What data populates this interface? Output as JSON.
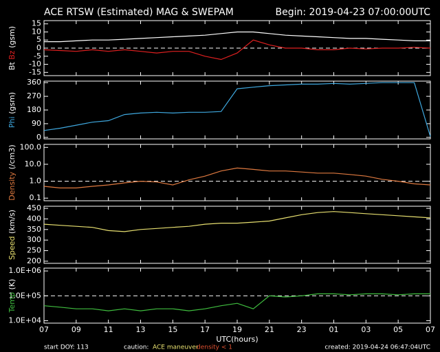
{
  "title": "ACE RTSW (Estimated) MAG & SWEPAM",
  "begin": "Begin: 2019-04-23 07:00:00UTC",
  "x_label": "UTC(hours)",
  "footer": {
    "start": "start DOY: 113",
    "caution": "caution:",
    "maneuver": "ACE maneuver",
    "density": "density < 1",
    "created": "created: 2019-04-24 06:47:04UTC"
  },
  "chart_data": [
    {
      "type": "line",
      "ylabel": "(gsm)",
      "ylim": [
        -17,
        17
      ],
      "yticks": [
        15,
        10,
        5,
        0,
        -5,
        -10,
        -15
      ],
      "hline": 0,
      "xlim": [
        0,
        24
      ],
      "x": [
        0,
        1,
        2,
        3,
        4,
        5,
        6,
        7,
        8,
        9,
        10,
        11,
        12,
        13,
        14,
        15,
        16,
        17,
        18,
        19,
        20,
        21,
        22,
        23,
        24
      ],
      "series": [
        {
          "name": "Bt",
          "color": "#ffffff",
          "values": [
            4,
            4,
            4.5,
            5,
            5,
            5.5,
            6,
            6.5,
            7,
            7.5,
            8,
            9,
            10,
            10,
            9,
            8,
            7.5,
            7,
            6.5,
            6,
            6,
            5.5,
            5,
            4.5,
            4.5
          ]
        },
        {
          "name": "Bz",
          "color": "#e02020",
          "values": [
            -1,
            -1.5,
            -2,
            -1,
            -2,
            -1,
            -2,
            -3,
            -2,
            -2,
            -5,
            -7,
            -3,
            5,
            2,
            0,
            0,
            -1,
            -1,
            0,
            -0.5,
            0,
            0,
            0.5,
            0
          ]
        }
      ]
    },
    {
      "type": "line",
      "ylabel": "(gsm)",
      "ylim": [
        -10,
        370
      ],
      "yticks": [
        0,
        90,
        180,
        270,
        360
      ],
      "xlim": [
        0,
        24
      ],
      "x": [
        0,
        1,
        2,
        3,
        4,
        5,
        6,
        7,
        8,
        9,
        10,
        11,
        12,
        13,
        14,
        15,
        16,
        17,
        18,
        19,
        20,
        21,
        22,
        23,
        24
      ],
      "series": [
        {
          "name": "Phi",
          "color": "#3fa9e0",
          "values": [
            45,
            60,
            80,
            100,
            110,
            150,
            160,
            165,
            160,
            165,
            165,
            170,
            320,
            330,
            340,
            345,
            350,
            350,
            355,
            350,
            355,
            360,
            360,
            360,
            5
          ]
        }
      ]
    },
    {
      "type": "line",
      "log": true,
      "ylabel": "(/cm3)",
      "ylim": [
        0.07,
        150
      ],
      "yticks": [
        {
          "value": 100,
          "label": "100.0"
        },
        {
          "value": 10,
          "label": "10.0"
        },
        {
          "value": 1,
          "label": "1.0"
        },
        0.1
      ],
      "hline": 1,
      "xlim": [
        0,
        24
      ],
      "x": [
        0,
        1,
        2,
        3,
        4,
        5,
        6,
        7,
        8,
        9,
        10,
        11,
        12,
        13,
        14,
        15,
        16,
        17,
        18,
        19,
        20,
        21,
        22,
        23,
        24
      ],
      "series": [
        {
          "name": "Density",
          "color": "#e07a40",
          "values": [
            0.5,
            0.4,
            0.4,
            0.5,
            0.6,
            0.8,
            1.0,
            0.9,
            0.6,
            1.2,
            2,
            4,
            6,
            5,
            4,
            4,
            3.5,
            3,
            3,
            2.5,
            2,
            1.3,
            1,
            0.7,
            0.6
          ]
        }
      ]
    },
    {
      "type": "line",
      "ylabel": "(km/s)",
      "ylim": [
        190,
        460
      ],
      "yticks": [
        450,
        400,
        350,
        300,
        250,
        200
      ],
      "xlim": [
        0,
        24
      ],
      "x": [
        0,
        1,
        2,
        3,
        4,
        5,
        6,
        7,
        8,
        9,
        10,
        11,
        12,
        13,
        14,
        15,
        16,
        17,
        18,
        19,
        20,
        21,
        22,
        23,
        24
      ],
      "series": [
        {
          "name": "Speed",
          "color": "#e8e070",
          "values": [
            375,
            370,
            365,
            360,
            345,
            340,
            350,
            355,
            360,
            365,
            375,
            380,
            380,
            385,
            390,
            405,
            420,
            430,
            435,
            430,
            425,
            420,
            415,
            410,
            405
          ]
        }
      ]
    },
    {
      "type": "line",
      "log": true,
      "ylabel": "(K)",
      "ylim": [
        8000,
        1300000
      ],
      "yticks": [
        {
          "value": 1000000,
          "label": "1.0E+06"
        },
        {
          "value": 100000,
          "label": "1.0E+05"
        },
        {
          "value": 10000,
          "label": "1.0E+04"
        }
      ],
      "hline": 100000,
      "xlim": [
        0,
        24
      ],
      "xticks": [
        {
          "value": 0,
          "label": "07"
        },
        {
          "value": 2,
          "label": "09"
        },
        {
          "value": 4,
          "label": "11"
        },
        {
          "value": 6,
          "label": "13"
        },
        {
          "value": 8,
          "label": "15"
        },
        {
          "value": 10,
          "label": "17"
        },
        {
          "value": 12,
          "label": "19"
        },
        {
          "value": 14,
          "label": "21"
        },
        {
          "value": 16,
          "label": "23"
        },
        {
          "value": 18,
          "label": "01"
        },
        {
          "value": 20,
          "label": "03"
        },
        {
          "value": 22,
          "label": "05"
        },
        {
          "value": 24,
          "label": "07"
        }
      ],
      "x": [
        0,
        1,
        2,
        3,
        4,
        5,
        6,
        7,
        8,
        9,
        10,
        11,
        12,
        13,
        14,
        15,
        16,
        17,
        18,
        19,
        20,
        21,
        22,
        23,
        24
      ],
      "series": [
        {
          "name": "Temp",
          "color": "#40c040",
          "values": [
            40000,
            35000,
            30000,
            30000,
            25000,
            30000,
            25000,
            30000,
            30000,
            25000,
            30000,
            40000,
            50000,
            30000,
            100000,
            90000,
            100000,
            120000,
            120000,
            110000,
            120000,
            120000,
            110000,
            120000,
            120000
          ]
        }
      ]
    }
  ]
}
